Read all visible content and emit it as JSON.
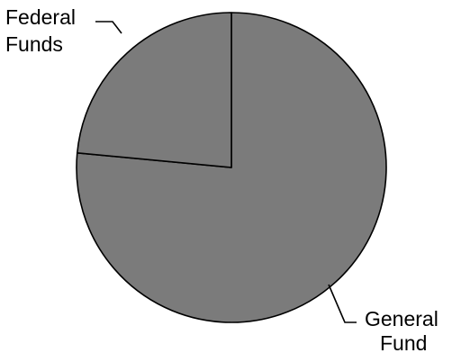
{
  "chart_data": {
    "type": "pie",
    "title": "",
    "slices": [
      {
        "label_lines": [
          "Federal",
          "Funds"
        ],
        "value": 23.5,
        "color": "#7b7b7b"
      },
      {
        "label_lines": [
          "General",
          "Fund"
        ],
        "value": 76.5,
        "color": "#7b7b7b"
      }
    ],
    "legend": "none",
    "slice_border_color": "#000000",
    "leader_line_color": "#000000"
  }
}
